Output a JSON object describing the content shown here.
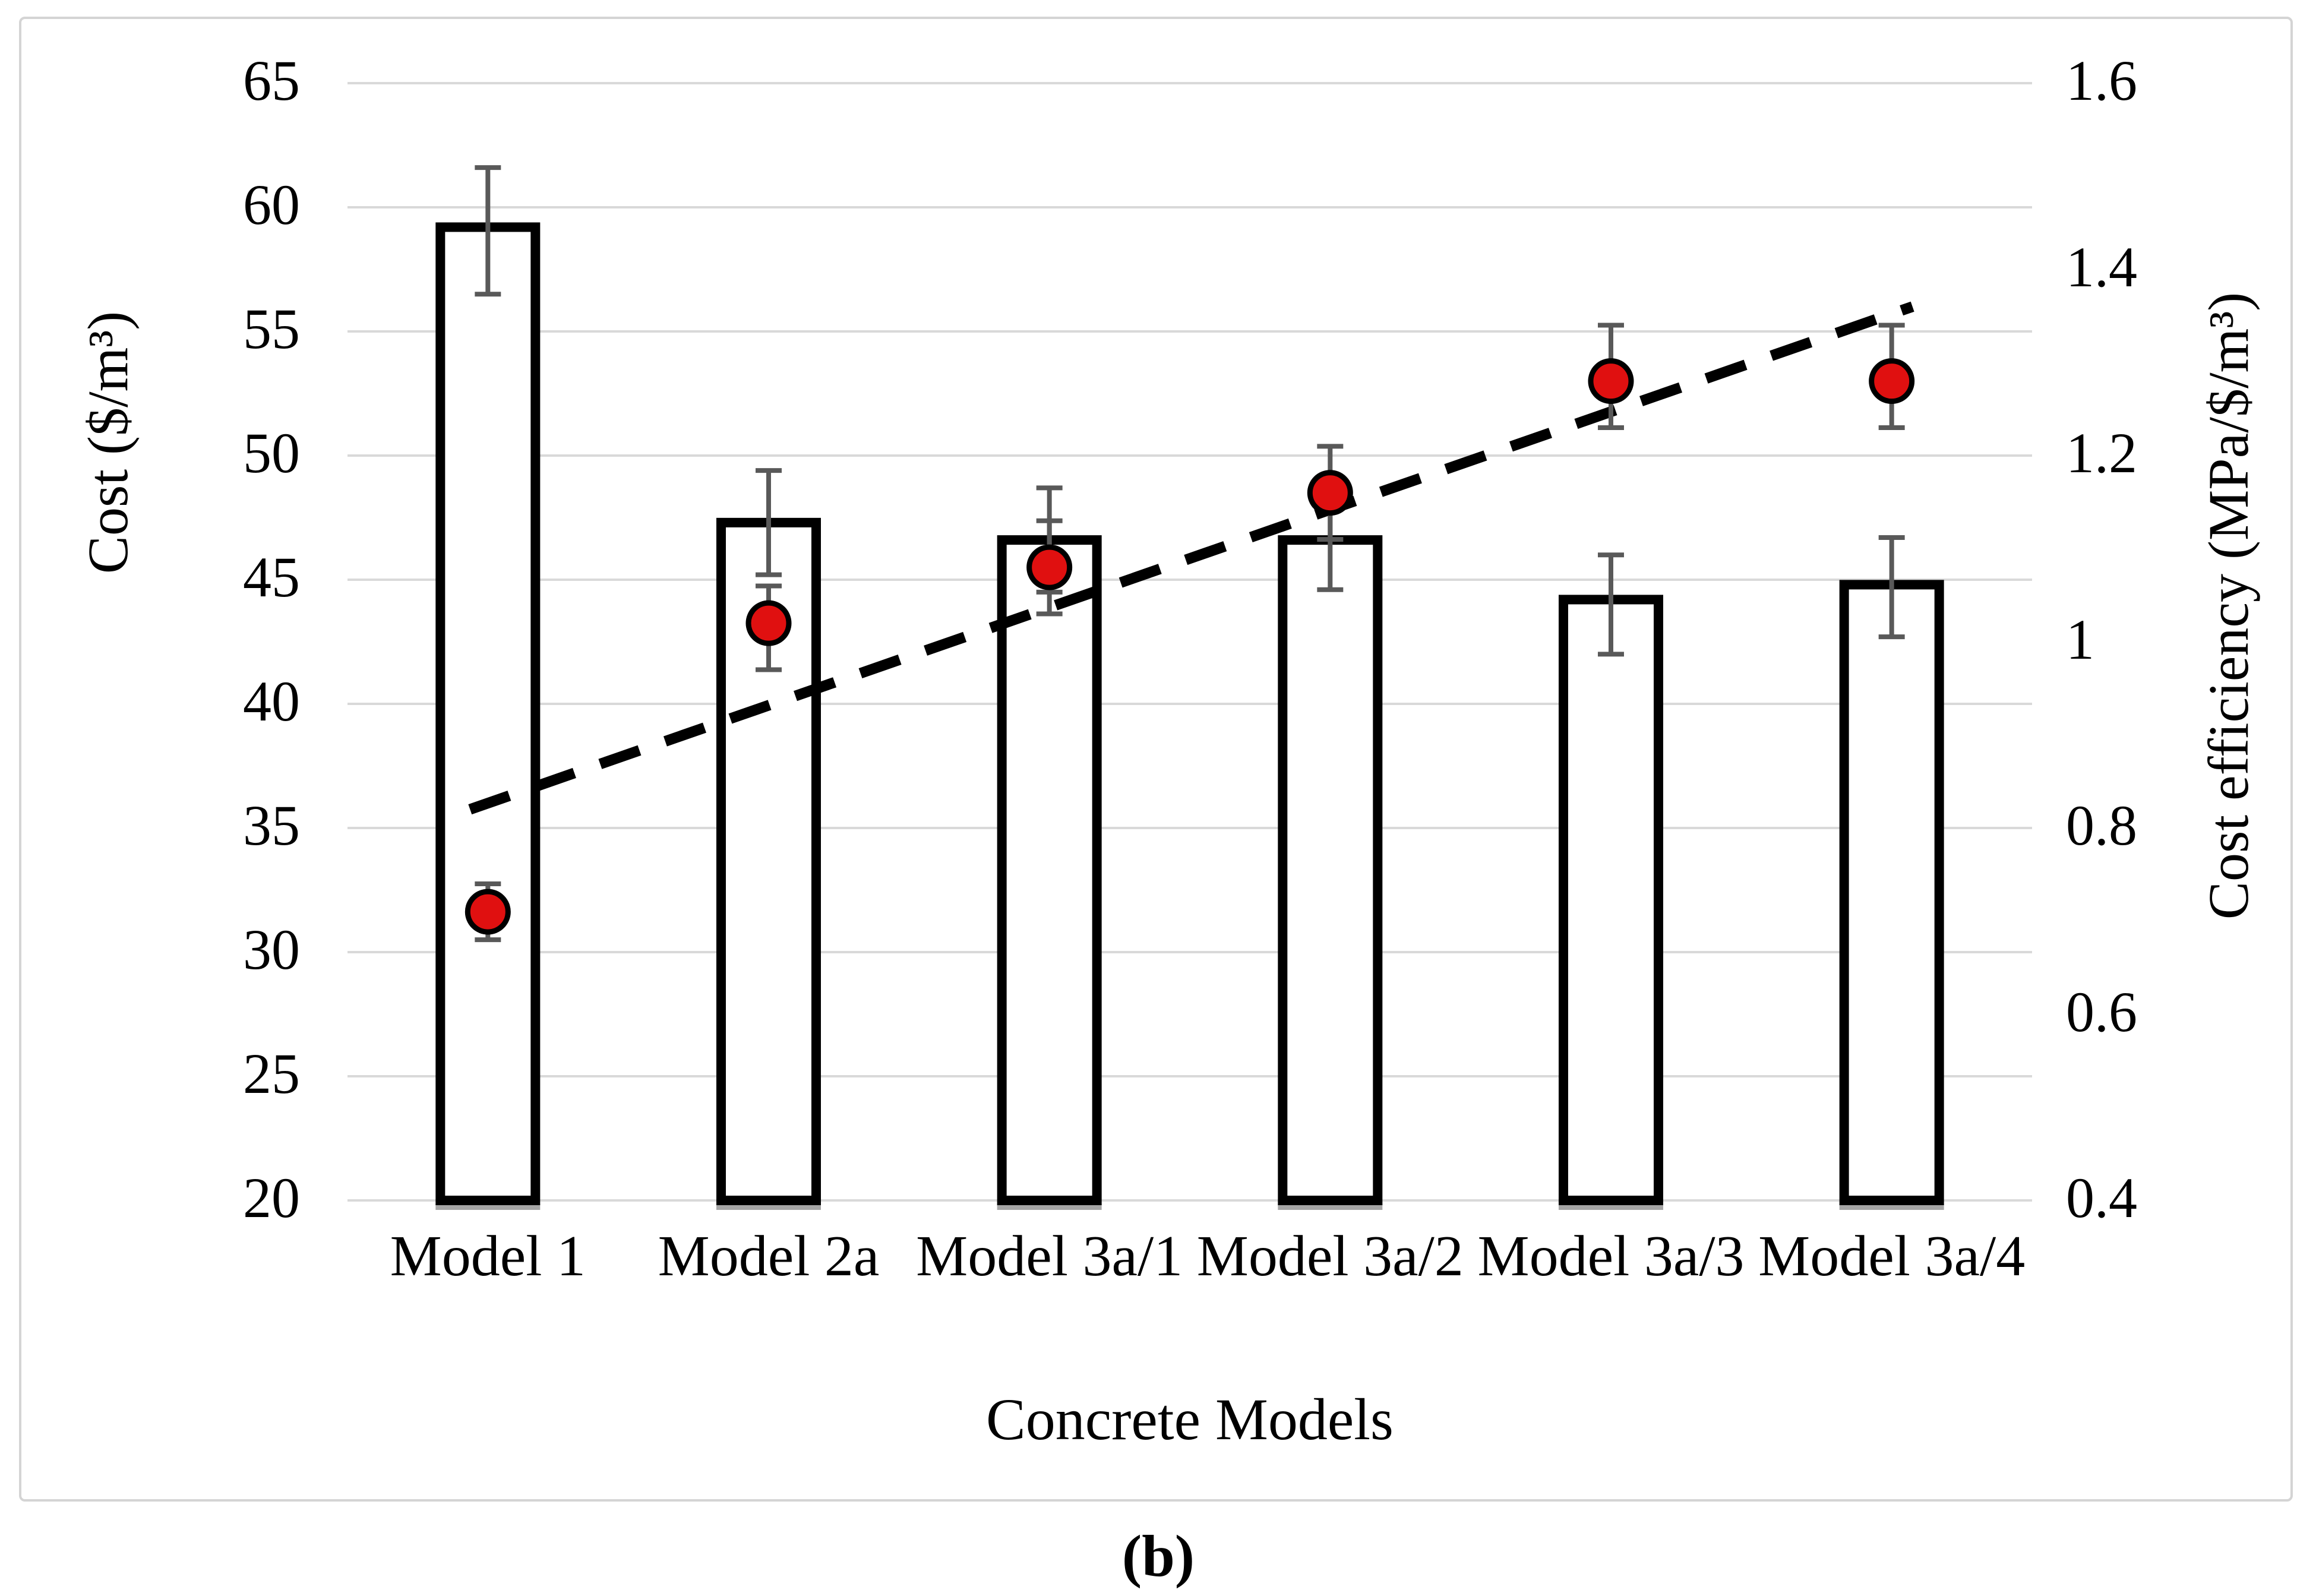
{
  "figure": {
    "caption": "(b)"
  },
  "chart_data": {
    "type": "combo-bar-scatter",
    "title": "",
    "xlabel": "Concrete Models",
    "categories": [
      "Model 1",
      "Model 2a",
      "Model 3a/1",
      "Model 3a/2",
      "Model 3a/3",
      "Model 3a/4"
    ],
    "left_axis": {
      "label": "Cost ($/m³)",
      "min": 20,
      "max": 65,
      "tick_step": 5,
      "ticks": [
        65,
        60,
        55,
        50,
        45,
        40,
        35,
        30,
        25,
        20
      ]
    },
    "right_axis": {
      "label": "Cost efficiency (MPa/$/m³)",
      "min": 0.4,
      "max": 1.6,
      "tick_step": 0.2,
      "ticks": [
        "1.6",
        "1.4",
        "1.2",
        "1",
        "0.8",
        "0.6",
        "0.4"
      ]
    },
    "grid": true,
    "legend": false,
    "series": [
      {
        "name": "Cost",
        "type": "bar",
        "axis": "left",
        "values": [
          59.2,
          47.3,
          46.6,
          46.6,
          44.2,
          44.8
        ],
        "error_low": [
          56.5,
          45.2,
          44.5,
          44.6,
          42.0,
          42.7
        ],
        "error_high": [
          61.6,
          49.4,
          48.7,
          48.6,
          46.0,
          46.7
        ]
      },
      {
        "name": "Cost efficiency",
        "type": "scatter",
        "axis": "right",
        "values": [
          0.71,
          1.02,
          1.08,
          1.16,
          1.28,
          1.28
        ],
        "error_low": [
          0.68,
          0.97,
          1.03,
          1.11,
          1.23,
          1.23
        ],
        "error_high": [
          0.74,
          1.06,
          1.13,
          1.21,
          1.34,
          1.34
        ]
      },
      {
        "name": "Linear trend of cost efficiency",
        "type": "dashed-trendline",
        "axis": "right",
        "start_value": 0.82,
        "end_value": 1.36
      }
    ],
    "colors": {
      "bar_fill": "#ffffff",
      "bar_border": "#000000",
      "bar_baseline_shadow": "#a6a6a6",
      "marker_fill": "#e01010",
      "marker_border": "#000000",
      "error_bar": "#595959",
      "gridline": "#d9d9d9",
      "trendline": "#000000"
    }
  }
}
